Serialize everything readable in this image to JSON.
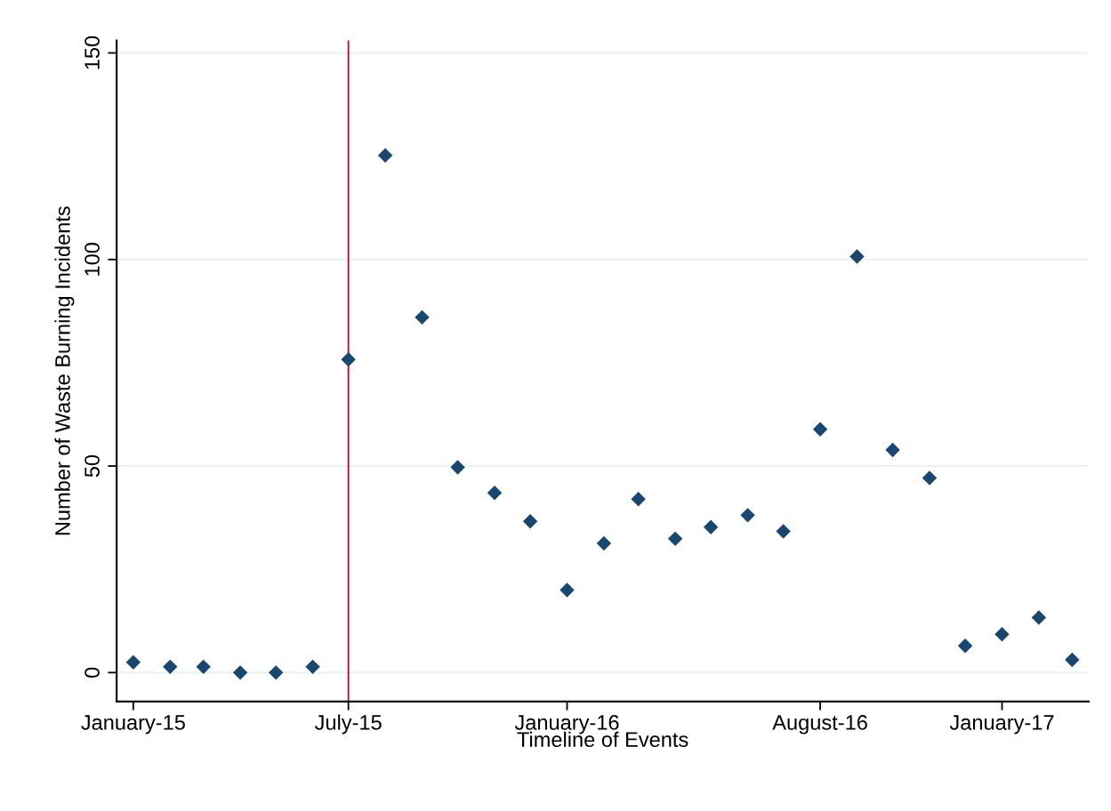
{
  "chart_data": {
    "type": "scatter",
    "xlabel": "Timeline of Events",
    "ylabel": "Number of Waste Burning Incidents",
    "x": [
      "2015-01",
      "2015-02",
      "2015-03",
      "2015-04",
      "2015-05",
      "2015-06",
      "2015-07",
      "2015-08",
      "2015-09",
      "2015-10",
      "2015-11",
      "2015-12",
      "2016-01",
      "2016-02",
      "2016-03",
      "2016-04",
      "2016-05",
      "2016-06",
      "2016-07",
      "2016-08",
      "2016-09",
      "2016-10",
      "2016-11",
      "2016-12",
      "2017-01",
      "2017-02",
      "2017-03"
    ],
    "series": [
      {
        "color": "#1a476f",
        "values": [
          2.5,
          1.4,
          1.4,
          0,
          0,
          1.4,
          75.8,
          125.2,
          86,
          49.7,
          43.5,
          36.6,
          20,
          31.3,
          42,
          32.4,
          35.2,
          38.1,
          34.2,
          58.9,
          100.7,
          53.9,
          47.1,
          6.5,
          9.3,
          13.3,
          3.1
        ]
      }
    ],
    "marker": "diamond",
    "xlim": [
      "2014-12-18",
      "2017-03-15"
    ],
    "xticks": [
      {
        "value": "2015-01",
        "label": "January-15"
      },
      {
        "value": "2015-07",
        "label": "July-15"
      },
      {
        "value": "2016-01",
        "label": "January-16"
      },
      {
        "value": "2016-08",
        "label": "August-16"
      },
      {
        "value": "2017-01",
        "label": "January-17"
      }
    ],
    "ylim": [
      -7,
      153
    ],
    "yticks": [
      0,
      50,
      100,
      150
    ],
    "grid": "y",
    "ref_lines": [
      {
        "axis": "x",
        "value": "2015-07",
        "color": "#c10534",
        "line_style": "solid"
      }
    ]
  }
}
